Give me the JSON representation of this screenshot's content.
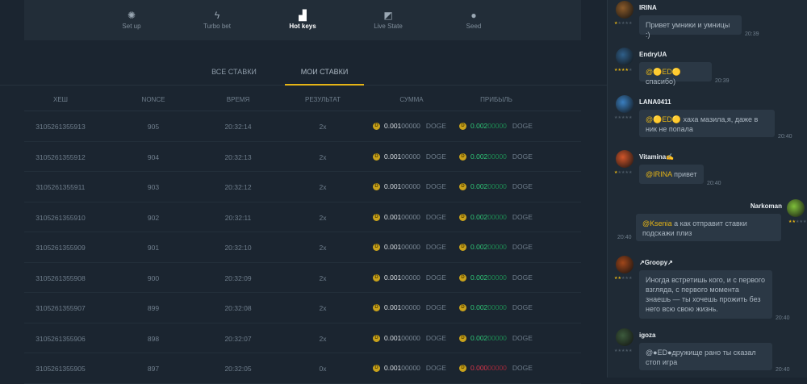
{
  "toolbar": {
    "items": [
      {
        "label": "Set up",
        "icon": "gear-icon",
        "glyph": "✺"
      },
      {
        "label": "Turbo bet",
        "icon": "lightning-icon",
        "glyph": "ϟ"
      },
      {
        "label": "Hot keys",
        "icon": "keys-icon",
        "glyph": "▟"
      },
      {
        "label": "Live State",
        "icon": "chart-icon",
        "glyph": "◩"
      },
      {
        "label": "Seed",
        "icon": "seed-icon",
        "glyph": "●"
      }
    ],
    "active": "Hot keys"
  },
  "tabs": {
    "all": "ВСЕ СТАВКИ",
    "mine": "МОИ СТАВКИ",
    "active": "mine"
  },
  "table": {
    "headers": [
      "ХЕШ",
      "NONCE",
      "ВРЕМЯ",
      "РЕЗУЛЬТАТ",
      "СУММА",
      "ПРИБЫЛЬ"
    ],
    "rows": [
      {
        "hash": "3105261355913",
        "nonce": "905",
        "time": "20:32:14",
        "result": "2x",
        "amount": "0.00100000",
        "currency": "DOGE",
        "profit": "0.00200000",
        "win": true
      },
      {
        "hash": "3105261355912",
        "nonce": "904",
        "time": "20:32:13",
        "result": "2x",
        "amount": "0.00100000",
        "currency": "DOGE",
        "profit": "0.00200000",
        "win": true
      },
      {
        "hash": "3105261355911",
        "nonce": "903",
        "time": "20:32:12",
        "result": "2x",
        "amount": "0.00100000",
        "currency": "DOGE",
        "profit": "0.00200000",
        "win": true
      },
      {
        "hash": "3105261355910",
        "nonce": "902",
        "time": "20:32:11",
        "result": "2x",
        "amount": "0.00100000",
        "currency": "DOGE",
        "profit": "0.00200000",
        "win": true
      },
      {
        "hash": "3105261355909",
        "nonce": "901",
        "time": "20:32:10",
        "result": "2x",
        "amount": "0.00100000",
        "currency": "DOGE",
        "profit": "0.00200000",
        "win": true
      },
      {
        "hash": "3105261355908",
        "nonce": "900",
        "time": "20:32:09",
        "result": "2x",
        "amount": "0.00100000",
        "currency": "DOGE",
        "profit": "0.00200000",
        "win": true
      },
      {
        "hash": "3105261355907",
        "nonce": "899",
        "time": "20:32:08",
        "result": "2x",
        "amount": "0.00100000",
        "currency": "DOGE",
        "profit": "0.00200000",
        "win": true
      },
      {
        "hash": "3105261355906",
        "nonce": "898",
        "time": "20:32:07",
        "result": "2x",
        "amount": "0.00100000",
        "currency": "DOGE",
        "profit": "0.00200000",
        "win": true
      },
      {
        "hash": "3105261355905",
        "nonce": "897",
        "time": "20:32:05",
        "result": "0x",
        "amount": "0.00100000",
        "currency": "DOGE",
        "profit": "0.00000000",
        "win": false
      }
    ]
  },
  "chat": {
    "messages": [
      {
        "user": "IRINA",
        "stars": 1,
        "mention": "",
        "text": "Привет умники и умницы :)",
        "time": "20:39",
        "side": "left",
        "avatar": "#8a5a2a"
      },
      {
        "user": "EndryUA",
        "stars": 4,
        "mention": "@🟡ED🟡",
        "text": " спасибо)",
        "time": "20:39",
        "side": "left",
        "avatar": "#2f5f8a"
      },
      {
        "user": "LANA0411",
        "stars": 0,
        "mention": "@🟡ED🟡",
        "text": " хаха мазила,я, даже в ник не попала",
        "time": "20:40",
        "side": "left",
        "avatar": "#3a7fc0"
      },
      {
        "user": "Vitamina✍",
        "stars": 1,
        "mention": "@IRINA",
        "text": " привет",
        "time": "20:40",
        "side": "left",
        "avatar": "#d0552a"
      },
      {
        "user": "Narkoman",
        "stars": 2,
        "mention": "@Ksenia",
        "text": " а как отправит ставки подскажи плиз",
        "time": "20:40",
        "side": "right",
        "avatar": "#7fc03a"
      },
      {
        "user": "↗Groopy↗",
        "stars": 2,
        "mention": "",
        "text": "Иногда встретишь кого, и с первого взгляда, с первого момента знаешь — ты хочешь прожить без него всю свою жизнь.",
        "time": "20:40",
        "side": "left",
        "avatar": "#a0461a"
      },
      {
        "user": "igoza",
        "stars": 0,
        "mention": "",
        "text": "@●ED●дружище рано ты сказал стоп игра",
        "time": "20:40",
        "side": "left",
        "avatar": "#3c5a3c"
      }
    ]
  }
}
